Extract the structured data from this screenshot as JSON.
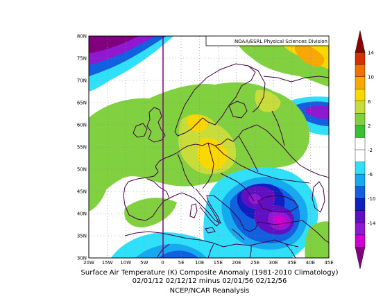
{
  "credit": "NOAA/ESRL Physical Sciences Division",
  "caption": {
    "line1": "Surface Air Temperature (K) Composite Anomaly (1981-2010 Climatology)",
    "line2": "02/01/12 02/12/12 minus 02/01/56 02/12/56",
    "line3": "NCEP/NCAR Reanalysis"
  },
  "lat_labels": [
    "80N",
    "75N",
    "70N",
    "65N",
    "60N",
    "55N",
    "50N",
    "45N",
    "40N",
    "35N",
    "30N"
  ],
  "lon_labels": [
    "20W",
    "15W",
    "10W",
    "5W",
    "0",
    "5E",
    "10E",
    "15E",
    "20E",
    "25E",
    "30E",
    "35E",
    "40E",
    "45E"
  ],
  "colorbar": {
    "labels": [
      "14",
      "10",
      "6",
      "2",
      "-2",
      "-6",
      "-10",
      "-14"
    ],
    "colors": [
      "#8b0000",
      "#d43000",
      "#f07000",
      "#f8a800",
      "#f8d800",
      "#c8dc3c",
      "#80d040",
      "#38c030",
      "#ffffff",
      "#ffffff",
      "#30e0f8",
      "#18a8f0",
      "#1060e0",
      "#1020c0",
      "#6010c0",
      "#9018d0",
      "#d000d0",
      "#800080"
    ]
  },
  "colors": {
    "frame": "#000000",
    "prime_meridian": "#800080",
    "coast": "#400040",
    "grid": "#888888"
  }
}
